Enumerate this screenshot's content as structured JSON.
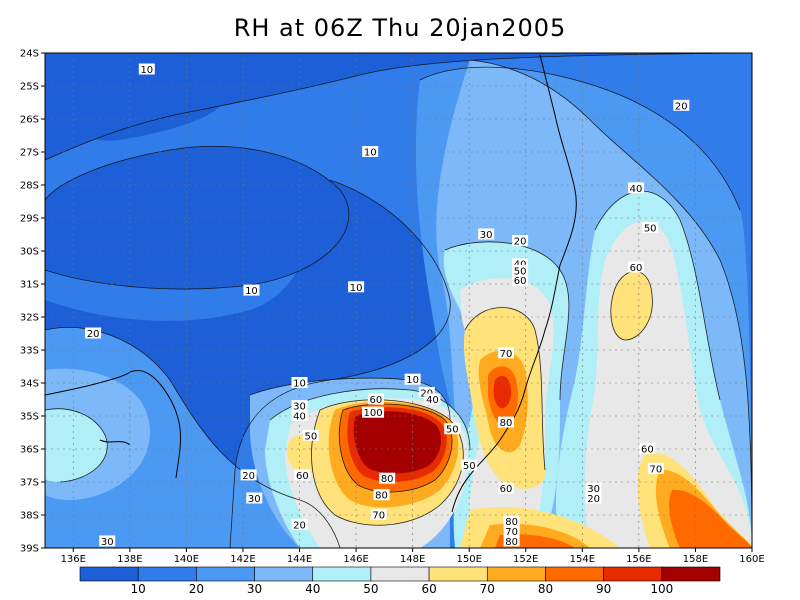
{
  "title": "RH at 06Z Thu 20jan2005",
  "lat_labels": [
    "24S",
    "25S",
    "26S",
    "27S",
    "28S",
    "29S",
    "30S",
    "31S",
    "32S",
    "33S",
    "34S",
    "35S",
    "36S",
    "37S",
    "38S",
    "39S"
  ],
  "lon_labels": [
    "136E",
    "138E",
    "140E",
    "142E",
    "144E",
    "146E",
    "148E",
    "150E",
    "152E",
    "154E",
    "156E",
    "158E",
    "160E"
  ],
  "colorbar": {
    "ticks": [
      "10",
      "20",
      "30",
      "40",
      "50",
      "60",
      "70",
      "80",
      "90",
      "100"
    ],
    "colors": [
      "#1c5fd6",
      "#2f7cea",
      "#4c99f3",
      "#7db9f8",
      "#b0eef8",
      "#e8e8e8",
      "#ffe27a",
      "#ffab1f",
      "#ff6a00",
      "#e82a00",
      "#a50000"
    ]
  },
  "contour_labels": [
    {
      "text": "10",
      "lon": 138.6,
      "lat": -24.5
    },
    {
      "text": "20",
      "lon": 157.5,
      "lat": -25.6
    },
    {
      "text": "10",
      "lon": 146.5,
      "lat": -27.0
    },
    {
      "text": "40",
      "lon": 155.9,
      "lat": -28.1
    },
    {
      "text": "50",
      "lon": 156.4,
      "lat": -29.3
    },
    {
      "text": "30",
      "lon": 150.6,
      "lat": -29.5
    },
    {
      "text": "20",
      "lon": 151.8,
      "lat": -29.7
    },
    {
      "text": "40",
      "lon": 151.8,
      "lat": -30.4
    },
    {
      "text": "50",
      "lon": 151.8,
      "lat": -30.6
    },
    {
      "text": "60",
      "lon": 151.8,
      "lat": -30.9
    },
    {
      "text": "60",
      "lon": 155.9,
      "lat": -30.5
    },
    {
      "text": "10",
      "lon": 142.3,
      "lat": -31.2
    },
    {
      "text": "10",
      "lon": 146.0,
      "lat": -31.1
    },
    {
      "text": "20",
      "lon": 136.7,
      "lat": -32.5
    },
    {
      "text": "70",
      "lon": 151.3,
      "lat": -33.1
    },
    {
      "text": "10",
      "lon": 144.0,
      "lat": -34.0
    },
    {
      "text": "10",
      "lon": 148.0,
      "lat": -33.9
    },
    {
      "text": "20",
      "lon": 148.5,
      "lat": -34.3
    },
    {
      "text": "40",
      "lon": 148.7,
      "lat": -34.5
    },
    {
      "text": "30",
      "lon": 144.0,
      "lat": -34.7
    },
    {
      "text": "40",
      "lon": 144.0,
      "lat": -35.0
    },
    {
      "text": "60",
      "lon": 146.7,
      "lat": -34.5
    },
    {
      "text": "100",
      "lon": 146.6,
      "lat": -34.9
    },
    {
      "text": "50",
      "lon": 144.4,
      "lat": -35.6
    },
    {
      "text": "50",
      "lon": 149.4,
      "lat": -35.4
    },
    {
      "text": "80",
      "lon": 151.3,
      "lat": -35.2
    },
    {
      "text": "50",
      "lon": 150.0,
      "lat": -36.5
    },
    {
      "text": "60",
      "lon": 144.1,
      "lat": -36.8
    },
    {
      "text": "80",
      "lon": 147.1,
      "lat": -36.9
    },
    {
      "text": "80",
      "lon": 146.9,
      "lat": -37.4
    },
    {
      "text": "60",
      "lon": 151.3,
      "lat": -37.2
    },
    {
      "text": "60",
      "lon": 156.3,
      "lat": -36.0
    },
    {
      "text": "70",
      "lon": 156.6,
      "lat": -36.6
    },
    {
      "text": "20",
      "lon": 142.2,
      "lat": -36.8
    },
    {
      "text": "30",
      "lon": 142.4,
      "lat": -37.5
    },
    {
      "text": "30",
      "lon": 154.4,
      "lat": -37.2
    },
    {
      "text": "20",
      "lon": 154.4,
      "lat": -37.5
    },
    {
      "text": "70",
      "lon": 146.8,
      "lat": -38.0
    },
    {
      "text": "20",
      "lon": 144.0,
      "lat": -38.3
    },
    {
      "text": "30",
      "lon": 137.2,
      "lat": -38.8
    },
    {
      "text": "80",
      "lon": 151.5,
      "lat": -38.2
    },
    {
      "text": "70",
      "lon": 151.5,
      "lat": -38.5
    },
    {
      "text": "80",
      "lon": 151.5,
      "lat": -38.8
    }
  ]
}
